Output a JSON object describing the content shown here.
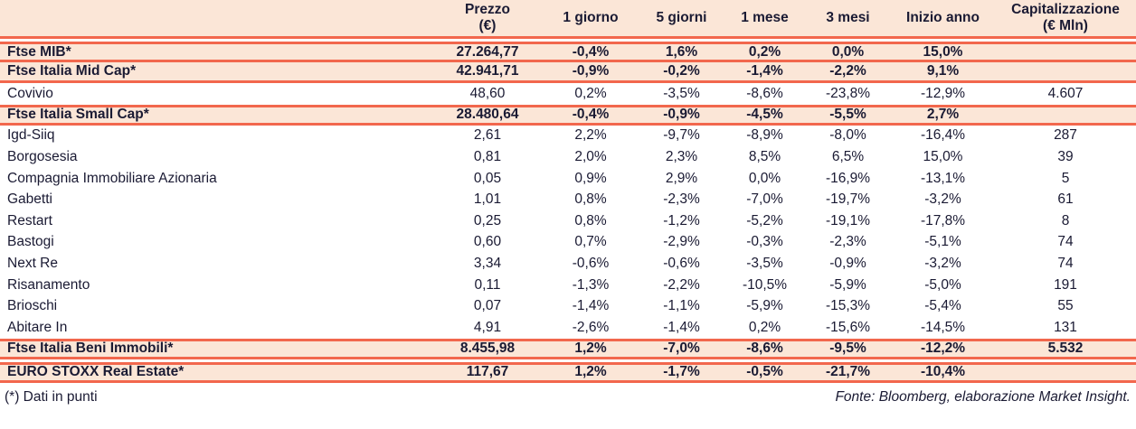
{
  "colors": {
    "accent_orange": "#f2674d",
    "row_peach": "#fbe6d7",
    "text_navy": "#1a1a33",
    "background": "#ffffff"
  },
  "table": {
    "columns": [
      {
        "id": "name",
        "label": "",
        "sublabel": ""
      },
      {
        "id": "prezzo",
        "label": "Prezzo",
        "sublabel": "(€)"
      },
      {
        "id": "g1",
        "label": "1 giorno",
        "sublabel": ""
      },
      {
        "id": "g5",
        "label": "5 giorni",
        "sublabel": ""
      },
      {
        "id": "m1",
        "label": "1 mese",
        "sublabel": ""
      },
      {
        "id": "m3",
        "label": "3 mesi",
        "sublabel": ""
      },
      {
        "id": "ytd",
        "label": "Inizio anno",
        "sublabel": ""
      },
      {
        "id": "cap",
        "label": "Capitalizzazione",
        "sublabel": "(€ Mln)"
      }
    ],
    "rows": [
      {
        "name": "Ftse MIB*",
        "style": "index",
        "gap_before": true,
        "border_top": true,
        "border_bottom": true,
        "values": [
          "27.264,77",
          "-0,4%",
          "1,6%",
          "0,2%",
          "0,0%",
          "15,0%",
          ""
        ]
      },
      {
        "name": "Ftse Italia Mid Cap*",
        "style": "index",
        "gap_before": false,
        "border_top": false,
        "border_bottom": true,
        "values": [
          "42.941,71",
          "-0,9%",
          "-0,2%",
          "-1,4%",
          "-2,2%",
          "9,1%",
          ""
        ]
      },
      {
        "name": "Covivio",
        "style": "stock",
        "gap_before": false,
        "border_top": false,
        "border_bottom": false,
        "values": [
          "48,60",
          "0,2%",
          "-3,5%",
          "-8,6%",
          "-23,8%",
          "-12,9%",
          "4.607"
        ]
      },
      {
        "name": "Ftse Italia Small Cap*",
        "style": "index",
        "gap_before": false,
        "border_top": true,
        "border_bottom": true,
        "values": [
          "28.480,64",
          "-0,4%",
          "-0,9%",
          "-4,5%",
          "-5,5%",
          "2,7%",
          ""
        ]
      },
      {
        "name": "Igd-Siiq",
        "style": "stock",
        "gap_before": false,
        "border_top": false,
        "border_bottom": false,
        "values": [
          "2,61",
          "2,2%",
          "-9,7%",
          "-8,9%",
          "-8,0%",
          "-16,4%",
          "287"
        ]
      },
      {
        "name": "Borgosesia",
        "style": "stock",
        "gap_before": false,
        "border_top": false,
        "border_bottom": false,
        "values": [
          "0,81",
          "2,0%",
          "2,3%",
          "8,5%",
          "6,5%",
          "15,0%",
          "39"
        ]
      },
      {
        "name": "Compagnia Immobiliare Azionaria",
        "style": "stock",
        "gap_before": false,
        "border_top": false,
        "border_bottom": false,
        "values": [
          "0,05",
          "0,9%",
          "2,9%",
          "0,0%",
          "-16,9%",
          "-13,1%",
          "5"
        ]
      },
      {
        "name": "Gabetti",
        "style": "stock",
        "gap_before": false,
        "border_top": false,
        "border_bottom": false,
        "values": [
          "1,01",
          "0,8%",
          "-2,3%",
          "-7,0%",
          "-19,7%",
          "-3,2%",
          "61"
        ]
      },
      {
        "name": "Restart",
        "style": "stock",
        "gap_before": false,
        "border_top": false,
        "border_bottom": false,
        "values": [
          "0,25",
          "0,8%",
          "-1,2%",
          "-5,2%",
          "-19,1%",
          "-17,8%",
          "8"
        ]
      },
      {
        "name": "Bastogi",
        "style": "stock",
        "gap_before": false,
        "border_top": false,
        "border_bottom": false,
        "values": [
          "0,60",
          "0,7%",
          "-2,9%",
          "-0,3%",
          "-2,3%",
          "-5,1%",
          "74"
        ]
      },
      {
        "name": "Next Re",
        "style": "stock",
        "gap_before": false,
        "border_top": false,
        "border_bottom": false,
        "values": [
          "3,34",
          "-0,6%",
          "-0,6%",
          "-3,5%",
          "-0,9%",
          "-3,2%",
          "74"
        ]
      },
      {
        "name": "Risanamento",
        "style": "stock",
        "gap_before": false,
        "border_top": false,
        "border_bottom": false,
        "values": [
          "0,11",
          "-1,3%",
          "-2,2%",
          "-10,5%",
          "-5,9%",
          "-5,0%",
          "191"
        ]
      },
      {
        "name": "Brioschi",
        "style": "stock",
        "gap_before": false,
        "border_top": false,
        "border_bottom": false,
        "values": [
          "0,07",
          "-1,4%",
          "-1,1%",
          "-5,9%",
          "-15,3%",
          "-5,4%",
          "55"
        ]
      },
      {
        "name": "Abitare In",
        "style": "stock",
        "gap_before": false,
        "border_top": false,
        "border_bottom": false,
        "values": [
          "4,91",
          "-2,6%",
          "-1,4%",
          "0,2%",
          "-15,6%",
          "-14,5%",
          "131"
        ]
      },
      {
        "name": "Ftse Italia Beni Immobili*",
        "style": "index",
        "gap_before": false,
        "border_top": true,
        "border_bottom": true,
        "values": [
          "8.455,98",
          "1,2%",
          "-7,0%",
          "-8,6%",
          "-9,5%",
          "-12,2%",
          "5.532"
        ]
      },
      {
        "name": "EURO STOXX Real Estate*",
        "style": "index",
        "gap_before": true,
        "border_top": true,
        "border_bottom": true,
        "values": [
          "117,67",
          "1,2%",
          "-1,7%",
          "-0,5%",
          "-21,7%",
          "-10,4%",
          ""
        ]
      }
    ]
  },
  "footer": {
    "note": "(*) Dati in punti",
    "source": "Fonte: Bloomberg, elaborazione Market Insight."
  },
  "chart_data": {
    "type": "table",
    "title": "",
    "columns": [
      "",
      "Prezzo (€)",
      "1 giorno",
      "5 giorni",
      "1 mese",
      "3 mesi",
      "Inizio anno",
      "Capitalizzazione (€ Mln)"
    ],
    "rows": [
      [
        "Ftse MIB*",
        "27.264,77",
        "-0,4%",
        "1,6%",
        "0,2%",
        "0,0%",
        "15,0%",
        ""
      ],
      [
        "Ftse Italia Mid Cap*",
        "42.941,71",
        "-0,9%",
        "-0,2%",
        "-1,4%",
        "-2,2%",
        "9,1%",
        ""
      ],
      [
        "Covivio",
        "48,60",
        "0,2%",
        "-3,5%",
        "-8,6%",
        "-23,8%",
        "-12,9%",
        "4.607"
      ],
      [
        "Ftse Italia Small Cap*",
        "28.480,64",
        "-0,4%",
        "-0,9%",
        "-4,5%",
        "-5,5%",
        "2,7%",
        ""
      ],
      [
        "Igd-Siiq",
        "2,61",
        "2,2%",
        "-9,7%",
        "-8,9%",
        "-8,0%",
        "-16,4%",
        "287"
      ],
      [
        "Borgosesia",
        "0,81",
        "2,0%",
        "2,3%",
        "8,5%",
        "6,5%",
        "15,0%",
        "39"
      ],
      [
        "Compagnia Immobiliare Azionaria",
        "0,05",
        "0,9%",
        "2,9%",
        "0,0%",
        "-16,9%",
        "-13,1%",
        "5"
      ],
      [
        "Gabetti",
        "1,01",
        "0,8%",
        "-2,3%",
        "-7,0%",
        "-19,7%",
        "-3,2%",
        "61"
      ],
      [
        "Restart",
        "0,25",
        "0,8%",
        "-1,2%",
        "-5,2%",
        "-19,1%",
        "-17,8%",
        "8"
      ],
      [
        "Bastogi",
        "0,60",
        "0,7%",
        "-2,9%",
        "-0,3%",
        "-2,3%",
        "-5,1%",
        "74"
      ],
      [
        "Next Re",
        "3,34",
        "-0,6%",
        "-0,6%",
        "-3,5%",
        "-0,9%",
        "-3,2%",
        "74"
      ],
      [
        "Risanamento",
        "0,11",
        "-1,3%",
        "-2,2%",
        "-10,5%",
        "-5,9%",
        "-5,0%",
        "191"
      ],
      [
        "Brioschi",
        "0,07",
        "-1,4%",
        "-1,1%",
        "-5,9%",
        "-15,3%",
        "-5,4%",
        "55"
      ],
      [
        "Abitare In",
        "4,91",
        "-2,6%",
        "-1,4%",
        "0,2%",
        "-15,6%",
        "-14,5%",
        "131"
      ],
      [
        "Ftse Italia Beni Immobili*",
        "8.455,98",
        "1,2%",
        "-7,0%",
        "-8,6%",
        "-9,5%",
        "-12,2%",
        "5.532"
      ],
      [
        "EURO STOXX Real Estate*",
        "117,67",
        "1,2%",
        "-1,7%",
        "-0,5%",
        "-21,7%",
        "-10,4%",
        ""
      ]
    ],
    "note": "(*) Dati in punti",
    "source": "Fonte: Bloomberg, elaborazione Market Insight."
  }
}
